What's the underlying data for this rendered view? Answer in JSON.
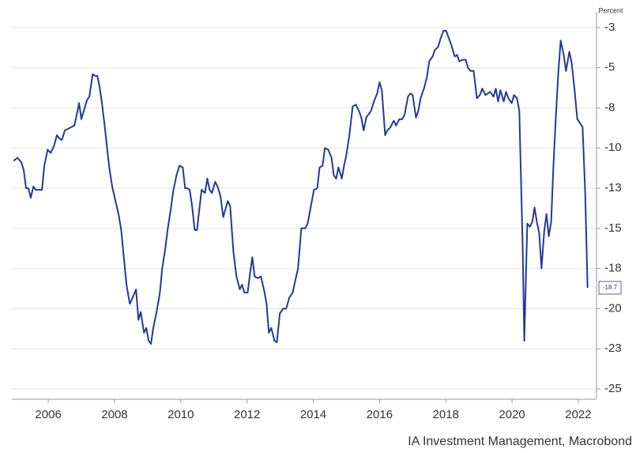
{
  "chart_data": {
    "type": "line",
    "unit_label": "Percent",
    "source": "IA Investment Management, Macrobond",
    "xlim": [
      2004.9,
      2022.55
    ],
    "xticks": [
      2006,
      2008,
      2010,
      2012,
      2014,
      2016,
      2018,
      2020,
      2022
    ],
    "ylim": [
      -25.64,
      -1.52
    ],
    "yticks": [
      {
        "value": -2.5,
        "label": "-3"
      },
      -5,
      {
        "value": -7.5,
        "label": "-8"
      },
      -10,
      {
        "value": -12.5,
        "label": "-13"
      },
      -15,
      {
        "value": -17.5,
        "label": "-18"
      },
      -20,
      {
        "value": -22.5,
        "label": "-23"
      },
      -25
    ],
    "grid": true,
    "series": [
      {
        "color": "#23399a",
        "x": [
          2004.95,
          2005.07,
          2005.19,
          2005.26,
          2005.33,
          2005.4,
          2005.47,
          2005.55,
          2005.62,
          2005.74,
          2005.81,
          2005.88,
          2005.98,
          2006.07,
          2006.17,
          2006.26,
          2006.33,
          2006.41,
          2006.5,
          2006.6,
          2006.69,
          2006.79,
          2006.86,
          2006.93,
          2007.0,
          2007.07,
          2007.17,
          2007.24,
          2007.34,
          2007.41,
          2007.48,
          2007.55,
          2007.62,
          2007.69,
          2007.77,
          2007.84,
          2007.93,
          2008.03,
          2008.12,
          2008.2,
          2008.29,
          2008.36,
          2008.46,
          2008.55,
          2008.65,
          2008.72,
          2008.79,
          2008.89,
          2008.96,
          2009.03,
          2009.1,
          2009.17,
          2009.27,
          2009.37,
          2009.44,
          2009.53,
          2009.6,
          2009.7,
          2009.77,
          2009.87,
          2009.96,
          2010.06,
          2010.13,
          2010.2,
          2010.27,
          2010.34,
          2010.42,
          2010.49,
          2010.56,
          2010.63,
          2010.73,
          2010.8,
          2010.87,
          2010.94,
          2011.04,
          2011.11,
          2011.2,
          2011.28,
          2011.35,
          2011.42,
          2011.49,
          2011.59,
          2011.68,
          2011.78,
          2011.85,
          2011.92,
          2012.02,
          2012.09,
          2012.16,
          2012.23,
          2012.33,
          2012.42,
          2012.52,
          2012.59,
          2012.66,
          2012.73,
          2012.83,
          2012.9,
          2012.99,
          2013.09,
          2013.18,
          2013.28,
          2013.38,
          2013.45,
          2013.54,
          2013.64,
          2013.76,
          2013.83,
          2013.92,
          2014.02,
          2014.12,
          2014.19,
          2014.28,
          2014.35,
          2014.45,
          2014.55,
          2014.62,
          2014.69,
          2014.76,
          2014.86,
          2014.93,
          2015.0,
          2015.09,
          2015.19,
          2015.29,
          2015.38,
          2015.45,
          2015.52,
          2015.6,
          2015.67,
          2015.74,
          2015.83,
          2015.93,
          2016.0,
          2016.07,
          2016.17,
          2016.24,
          2016.33,
          2016.43,
          2016.5,
          2016.6,
          2016.69,
          2016.76,
          2016.86,
          2016.93,
          2017.0,
          2017.1,
          2017.17,
          2017.24,
          2017.34,
          2017.43,
          2017.5,
          2017.6,
          2017.67,
          2017.77,
          2017.84,
          2017.93,
          2018.01,
          2018.1,
          2018.17,
          2018.27,
          2018.34,
          2018.41,
          2018.51,
          2018.6,
          2018.67,
          2018.75,
          2018.84,
          2018.94,
          2019.03,
          2019.1,
          2019.2,
          2019.27,
          2019.34,
          2019.44,
          2019.51,
          2019.58,
          2019.65,
          2019.75,
          2019.82,
          2019.89,
          2019.99,
          2020.06,
          2020.15,
          2020.22,
          2020.32,
          2020.37,
          2020.46,
          2020.54,
          2020.61,
          2020.68,
          2020.75,
          2020.82,
          2020.89,
          2020.97,
          2021.04,
          2021.11,
          2021.18,
          2021.25,
          2021.32,
          2021.4,
          2021.47,
          2021.56,
          2021.63,
          2021.73,
          2021.8,
          2021.89,
          2021.97,
          2022.04,
          2022.13,
          2022.21,
          2022.28
        ],
        "values": [
          -10.8,
          -10.6,
          -10.9,
          -11.4,
          -12.5,
          -12.5,
          -13.1,
          -12.4,
          -12.6,
          -12.6,
          -12.6,
          -11.1,
          -10.1,
          -10.3,
          -9.9,
          -9.2,
          -9.4,
          -9.5,
          -8.9,
          -8.8,
          -8.7,
          -8.6,
          -7.9,
          -7.2,
          -8.2,
          -7.7,
          -7.0,
          -6.8,
          -5.4,
          -5.5,
          -5.5,
          -6.2,
          -7.2,
          -8.4,
          -9.9,
          -11.2,
          -12.4,
          -13.3,
          -14.1,
          -15.1,
          -17.0,
          -18.5,
          -19.7,
          -19.3,
          -18.8,
          -20.7,
          -20.2,
          -21.5,
          -21.2,
          -22.0,
          -22.2,
          -21.2,
          -20.2,
          -19.0,
          -17.5,
          -16.3,
          -15.1,
          -13.8,
          -12.7,
          -11.7,
          -11.1,
          -11.2,
          -12.5,
          -12.5,
          -12.6,
          -13.6,
          -15.1,
          -15.1,
          -13.8,
          -12.6,
          -12.8,
          -11.9,
          -12.6,
          -12.8,
          -12.1,
          -12.4,
          -13.0,
          -14.3,
          -13.8,
          -13.3,
          -13.6,
          -16.5,
          -18.0,
          -18.8,
          -18.5,
          -19.0,
          -19.0,
          -17.8,
          -16.8,
          -18.0,
          -18.1,
          -18.0,
          -18.9,
          -19.7,
          -21.5,
          -21.2,
          -22.0,
          -22.1,
          -20.3,
          -20.0,
          -20.0,
          -19.3,
          -19.0,
          -18.3,
          -17.5,
          -15.0,
          -15.0,
          -14.7,
          -13.7,
          -12.6,
          -12.5,
          -11.2,
          -11.1,
          -10.0,
          -10.1,
          -10.6,
          -11.7,
          -11.9,
          -11.2,
          -11.9,
          -11.1,
          -10.4,
          -9.2,
          -7.4,
          -7.3,
          -7.7,
          -8.1,
          -8.9,
          -8.1,
          -7.9,
          -7.7,
          -7.1,
          -6.6,
          -5.9,
          -6.4,
          -9.2,
          -8.9,
          -8.7,
          -8.3,
          -8.6,
          -8.2,
          -8.2,
          -7.9,
          -6.8,
          -6.6,
          -6.7,
          -8.1,
          -7.7,
          -6.9,
          -6.3,
          -5.6,
          -4.6,
          -4.3,
          -3.9,
          -3.7,
          -3.2,
          -2.7,
          -2.7,
          -3.2,
          -3.6,
          -4.3,
          -4.2,
          -4.6,
          -4.5,
          -4.5,
          -5.0,
          -5.2,
          -5.2,
          -6.9,
          -6.7,
          -6.3,
          -6.7,
          -6.6,
          -6.5,
          -6.8,
          -6.3,
          -7.1,
          -6.4,
          -7.1,
          -6.5,
          -6.9,
          -7.2,
          -6.7,
          -6.9,
          -7.7,
          -16.0,
          -22.0,
          -14.7,
          -14.9,
          -14.6,
          -13.7,
          -14.6,
          -15.3,
          -17.5,
          -15.2,
          -14.1,
          -15.5,
          -14.6,
          -11.1,
          -8.2,
          -5.2,
          -3.3,
          -4.2,
          -5.2,
          -4.0,
          -4.7,
          -6.4,
          -8.2,
          -8.4,
          -8.7,
          -12.8,
          -18.7
        ]
      }
    ]
  }
}
